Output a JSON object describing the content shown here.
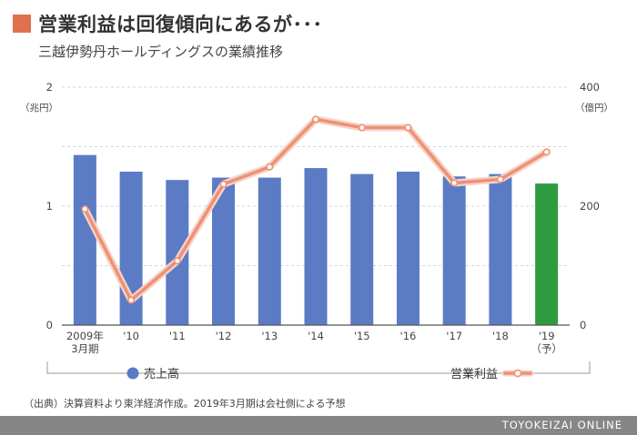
{
  "header": {
    "title": "営業利益は回復傾向にあるが･･･",
    "subtitle": "三越伊勢丹ホールディングスの業績推移"
  },
  "colors": {
    "accent": "#e0704e",
    "bar": "#5b7bc5",
    "bar_forecast": "#2e9b3e",
    "line": "#ec9177"
  },
  "chart_data": {
    "type": "bar",
    "categories": [
      "2009年\n3月期",
      "'10",
      "'11",
      "'12",
      "'13",
      "'14",
      "'15",
      "'16",
      "'17",
      "'18",
      "'19\n（予）"
    ],
    "series": [
      {
        "name": "売上高",
        "type": "bar",
        "axis": "left",
        "values": [
          1.43,
          1.29,
          1.22,
          1.24,
          1.24,
          1.32,
          1.27,
          1.29,
          1.25,
          1.27,
          1.19
        ],
        "forecast_index": 10
      },
      {
        "name": "営業利益",
        "type": "line",
        "axis": "right",
        "values": [
          195,
          42,
          108,
          237,
          266,
          346,
          332,
          332,
          239,
          245,
          291
        ]
      }
    ],
    "y_left": {
      "unit": "（兆円）",
      "ticks": [
        "0",
        "1",
        "2"
      ],
      "lim": [
        0,
        2
      ]
    },
    "y_right": {
      "unit": "（億円）",
      "ticks": [
        "0",
        "200",
        "400"
      ],
      "lim": [
        0,
        400
      ]
    },
    "grid": true,
    "legend_position": "bottom"
  },
  "footer": {
    "note": "（出典）決算資料より東洋経済作成。2019年3月期は会社側による予想",
    "brand": "TOYOKEIZAI ONLINE"
  }
}
